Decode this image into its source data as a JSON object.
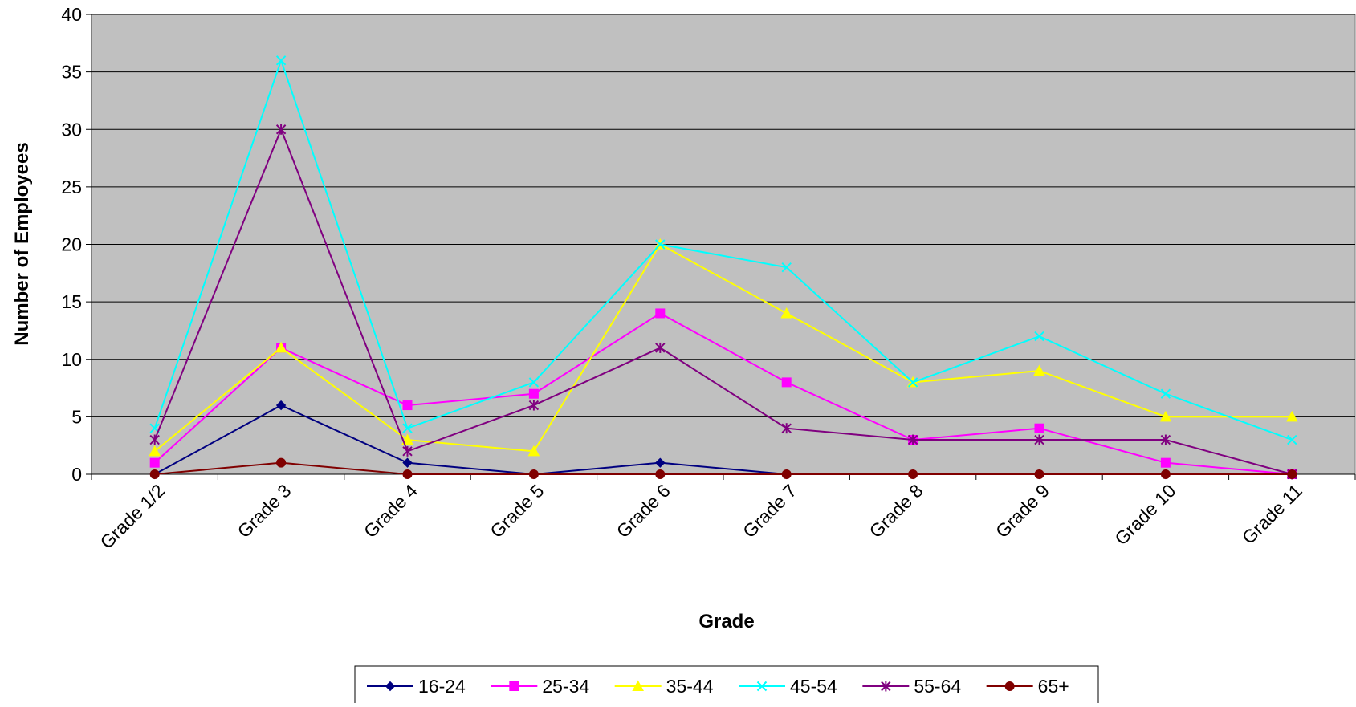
{
  "chart_data": {
    "type": "line",
    "title": "",
    "xlabel": "Grade",
    "ylabel": "Number of Employees",
    "categories": [
      "Grade 1/2",
      "Grade 3",
      "Grade 4",
      "Grade 5",
      "Grade 6",
      "Grade 7",
      "Grade 8",
      "Grade 9",
      "Grade 10",
      "Grade 11"
    ],
    "y_ticks": [
      "0",
      "5",
      "10",
      "15",
      "20",
      "25",
      "30",
      "35",
      "40"
    ],
    "ylim": [
      0,
      40
    ],
    "grid": true,
    "plot_background": "#c0c0c0",
    "legend_position": "bottom",
    "series": [
      {
        "name": "16-24",
        "color": "#000080",
        "marker": "diamond",
        "values": [
          0,
          6,
          1,
          0,
          1,
          0,
          0,
          0,
          0,
          0
        ]
      },
      {
        "name": "25-34",
        "color": "#ff00ff",
        "marker": "square",
        "values": [
          1,
          11,
          6,
          7,
          14,
          8,
          3,
          4,
          1,
          0
        ]
      },
      {
        "name": "35-44",
        "color": "#ffff00",
        "marker": "triangle",
        "values": [
          2,
          11,
          3,
          2,
          20,
          14,
          8,
          9,
          5,
          5
        ]
      },
      {
        "name": "45-54",
        "color": "#00ffff",
        "marker": "x",
        "values": [
          4,
          36,
          4,
          8,
          20,
          18,
          8,
          12,
          7,
          3
        ]
      },
      {
        "name": "55-64",
        "color": "#800080",
        "marker": "star",
        "values": [
          3,
          30,
          2,
          6,
          11,
          4,
          3,
          3,
          3,
          0
        ]
      },
      {
        "name": "65+",
        "color": "#800000",
        "marker": "circle",
        "values": [
          0,
          1,
          0,
          0,
          0,
          0,
          0,
          0,
          0,
          0
        ]
      }
    ]
  }
}
